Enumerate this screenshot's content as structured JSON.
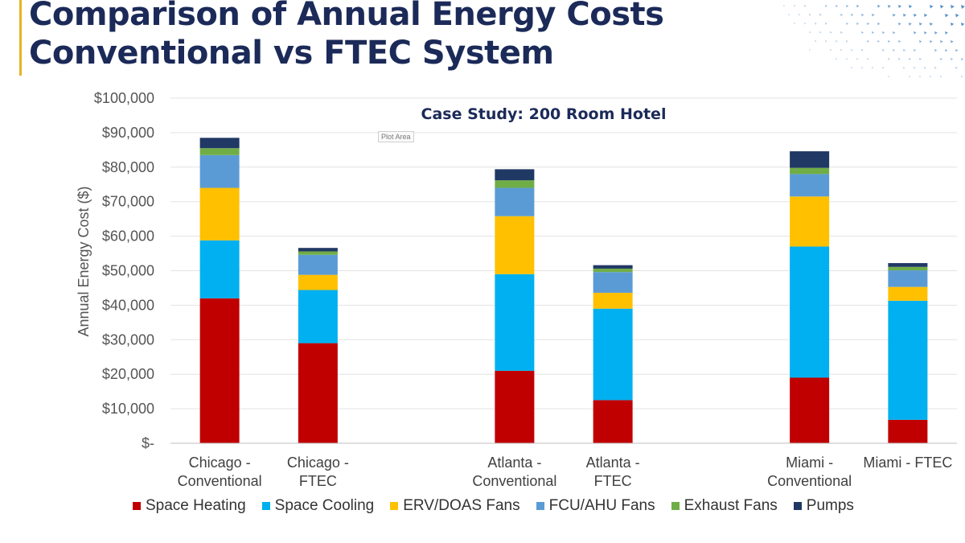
{
  "slide": {
    "title_line1": "Comparison of Annual Energy Costs",
    "title_line2": "Conventional vs FTEC System"
  },
  "plot_area_tag": "Plot Area",
  "colors": {
    "title": "#1b2a58",
    "accent": "#e8b321",
    "decor": "#3a7fc1"
  },
  "chart_data": {
    "type": "bar",
    "stacked": true,
    "title": "Case Study: 200 Room Hotel",
    "xlabel": "",
    "ylabel": "Annual Energy Cost ($)",
    "ylim": [
      0,
      100000
    ],
    "y_ticks": [
      0,
      10000,
      20000,
      30000,
      40000,
      50000,
      60000,
      70000,
      80000,
      90000,
      100000
    ],
    "y_tick_labels": [
      "$-",
      "$10,000",
      "$20,000",
      "$30,000",
      "$40,000",
      "$50,000",
      "$60,000",
      "$70,000",
      "$80,000",
      "$90,000",
      "$100,000"
    ],
    "grid": true,
    "legend_position": "bottom",
    "categories": [
      [
        "Chicago -",
        "Conventional"
      ],
      [
        "Chicago -",
        "FTEC"
      ],
      [],
      [
        "Atlanta -",
        "Conventional"
      ],
      [
        "Atlanta -",
        "FTEC"
      ],
      [],
      [
        "Miami -",
        "Conventional"
      ],
      [
        "Miami - FTEC"
      ]
    ],
    "series": [
      {
        "name": "Space Heating",
        "color": "#c00000",
        "values": [
          42000,
          29000,
          0,
          21000,
          12500,
          0,
          19000,
          6800
        ]
      },
      {
        "name": "Space Cooling",
        "color": "#00b0f0",
        "values": [
          16800,
          15400,
          0,
          28000,
          26500,
          0,
          38000,
          34500
        ]
      },
      {
        "name": "ERV/DOAS Fans",
        "color": "#ffc000",
        "values": [
          15200,
          4400,
          0,
          16800,
          4600,
          0,
          14500,
          4000
        ]
      },
      {
        "name": "FCU/AHU Fans",
        "color": "#5b9bd5",
        "values": [
          9500,
          5800,
          0,
          8200,
          6000,
          0,
          6500,
          4800
        ]
      },
      {
        "name": "Exhaust Fans",
        "color": "#70ad47",
        "values": [
          2000,
          1000,
          0,
          2200,
          1000,
          0,
          1800,
          1000
        ]
      },
      {
        "name": "Pumps",
        "color": "#203864",
        "values": [
          3000,
          1000,
          0,
          3200,
          1000,
          0,
          4800,
          1100
        ]
      }
    ]
  }
}
